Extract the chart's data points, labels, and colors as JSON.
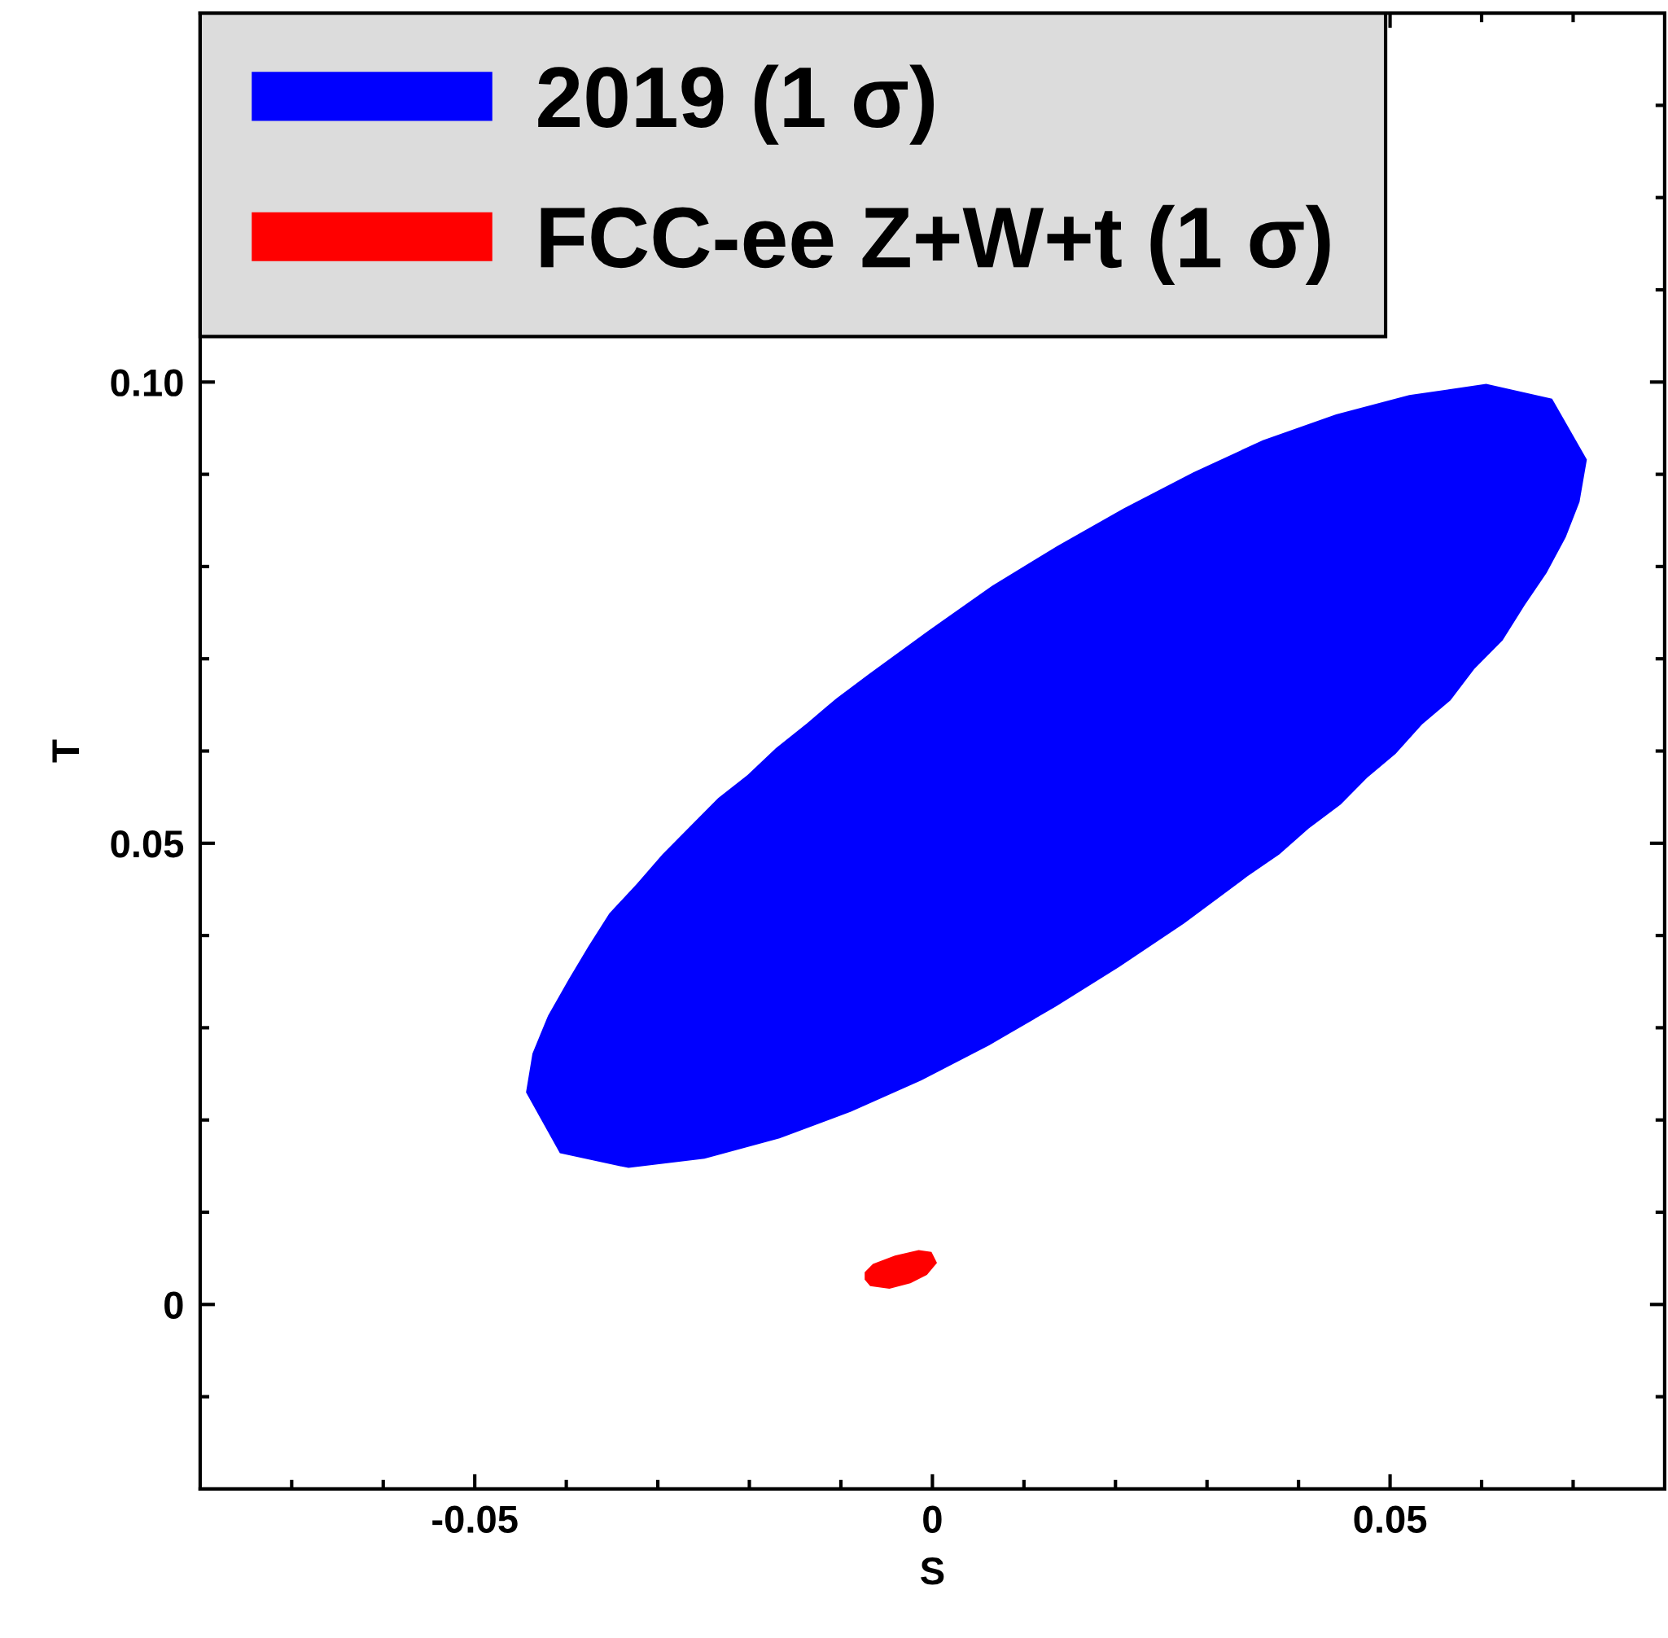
{
  "chart_data": {
    "type": "area",
    "xlabel": "S",
    "ylabel": "T",
    "xlim": [
      -0.08,
      0.08
    ],
    "ylim": [
      -0.02,
      0.14
    ],
    "xticks": [
      {
        "value": -0.07,
        "label": null
      },
      {
        "value": -0.06,
        "label": null
      },
      {
        "value": -0.05,
        "label": "-0.05"
      },
      {
        "value": -0.04,
        "label": null
      },
      {
        "value": -0.03,
        "label": null
      },
      {
        "value": -0.02,
        "label": null
      },
      {
        "value": -0.01,
        "label": null
      },
      0,
      {
        "value": 0.01,
        "label": null
      },
      {
        "value": 0.02,
        "label": null
      },
      {
        "value": 0.03,
        "label": null
      },
      {
        "value": 0.04,
        "label": null
      },
      0.05,
      {
        "value": 0.06,
        "label": null
      },
      {
        "value": 0.07,
        "label": null
      }
    ],
    "yticks": [
      {
        "value": -0.01,
        "label": null
      },
      0,
      {
        "value": 0.01,
        "label": null
      },
      {
        "value": 0.02,
        "label": null
      },
      {
        "value": 0.03,
        "label": null
      },
      {
        "value": 0.04,
        "label": null
      },
      0.05,
      {
        "value": 0.06,
        "label": null
      },
      {
        "value": 0.07,
        "label": null
      },
      {
        "value": 0.08,
        "label": null
      },
      {
        "value": 0.09,
        "label": null
      },
      {
        "value": 0.1,
        "label": "0.10"
      },
      {
        "value": 0.11,
        "label": null
      },
      {
        "value": 0.12,
        "label": null
      },
      {
        "value": 0.13,
        "label": null
      }
    ],
    "legend": "top left",
    "grid": false,
    "series": [
      {
        "name": "2019 (1 σ)",
        "color": "#0000ff",
        "x": [
          0.0605,
          0.0677,
          0.0715,
          0.0707,
          0.0692,
          0.0671,
          0.0647,
          0.0623,
          0.0592,
          0.0566,
          0.0535,
          0.0506,
          0.0475,
          0.0446,
          0.0411,
          0.0379,
          0.0344,
          0.0275,
          0.0204,
          0.0135,
          0.0062,
          -0.0012,
          -0.0089,
          -0.0167,
          -0.0249,
          -0.0332,
          -0.0407,
          -0.0444,
          -0.0437,
          -0.042,
          -0.0397,
          -0.0376,
          -0.0353,
          -0.0323,
          -0.0295,
          -0.0264,
          -0.0234,
          -0.0202,
          -0.0171,
          -0.0137,
          -0.0105,
          -0.007,
          -0.0005,
          0.0065,
          0.0136,
          0.0209,
          0.0285,
          0.0361,
          0.0441,
          0.0521
        ],
        "values": [
          0.0998,
          0.0982,
          0.0916,
          0.087,
          0.0832,
          0.0793,
          0.0758,
          0.072,
          0.0689,
          0.0655,
          0.0629,
          0.0597,
          0.0571,
          0.0542,
          0.0516,
          0.0488,
          0.0464,
          0.0413,
          0.0366,
          0.0323,
          0.0281,
          0.0243,
          0.0209,
          0.018,
          0.0158,
          0.0148,
          0.0164,
          0.023,
          0.0272,
          0.0313,
          0.0353,
          0.0388,
          0.0424,
          0.0456,
          0.0488,
          0.0519,
          0.0549,
          0.0574,
          0.0603,
          0.063,
          0.0657,
          0.0683,
          0.073,
          0.0779,
          0.0822,
          0.0863,
          0.0902,
          0.0937,
          0.0965,
          0.0986
        ]
      },
      {
        "name": "FCC-ee Z+W+t (1 σ)",
        "color": "#ff0000",
        "x": [
          -0.0074,
          -0.0065,
          -0.0041,
          -0.0015,
          -0.0001,
          0.0005,
          -0.0006,
          -0.0024,
          -0.0047,
          -0.0068,
          -0.0074
        ],
        "values": [
          0.0035,
          0.0044,
          0.0053,
          0.0059,
          0.0057,
          0.0045,
          0.0032,
          0.0023,
          0.0017,
          0.002,
          0.0027
        ]
      }
    ]
  }
}
